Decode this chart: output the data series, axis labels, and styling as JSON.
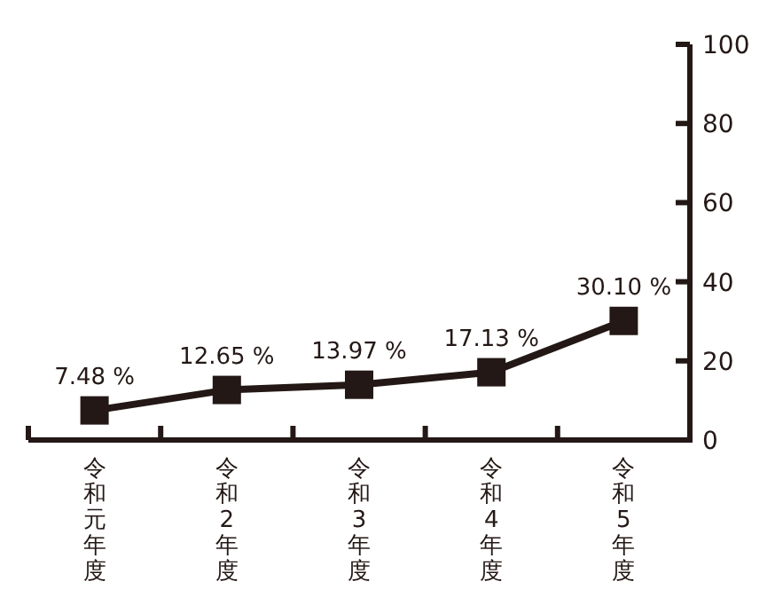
{
  "chart_data": {
    "type": "line",
    "categories": [
      "令和元年度",
      "令和2年度",
      "令和3年度",
      "令和4年度",
      "令和5年度"
    ],
    "series": [
      {
        "color": "#231815",
        "values": [
          7.48,
          12.65,
          13.97,
          17.13,
          30.1
        ],
        "value_labels": [
          "7.48 %",
          "12.65 %",
          "13.97 %",
          "17.13 %",
          "30.10 %"
        ]
      }
    ],
    "ylim": [
      0,
      100
    ],
    "yticks": [
      0,
      20,
      40,
      60,
      80,
      100
    ],
    "marker": "square",
    "line_style": "solid",
    "grid": false
  }
}
